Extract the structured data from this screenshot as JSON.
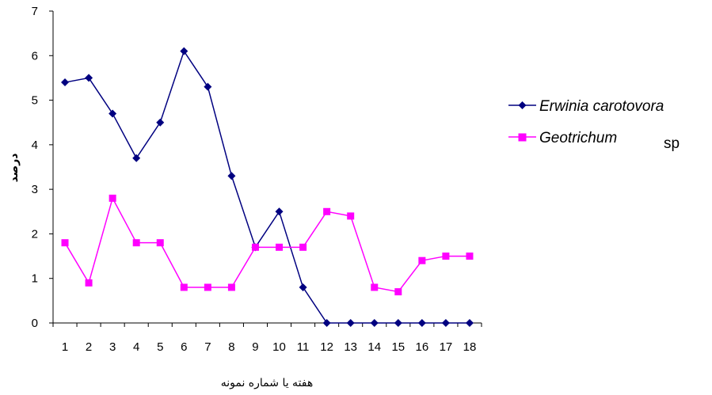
{
  "chart_data": {
    "type": "line",
    "categories": [
      "1",
      "2",
      "3",
      "4",
      "5",
      "6",
      "7",
      "8",
      "9",
      "10",
      "11",
      "12",
      "13",
      "14",
      "15",
      "16",
      "17",
      "18"
    ],
    "series": [
      {
        "name": "Erwinia carotovora",
        "color": "#000080",
        "marker": "diamond",
        "values": [
          5.4,
          5.5,
          4.7,
          3.7,
          4.5,
          6.1,
          5.3,
          3.3,
          1.7,
          2.5,
          0.8,
          0,
          0,
          0,
          0,
          0,
          0,
          0
        ]
      },
      {
        "name": "Geotrichum",
        "name_suffix": "sp",
        "color": "#ff00ff",
        "marker": "square",
        "values": [
          1.8,
          0.9,
          2.8,
          1.8,
          1.8,
          0.8,
          0.8,
          0.8,
          1.7,
          1.7,
          1.7,
          2.5,
          2.4,
          0.8,
          0.7,
          1.4,
          1.5,
          1.5
        ]
      }
    ],
    "xlabel": "هفته یا شماره نمونه",
    "ylabel": "درصد",
    "ylim": [
      0,
      7
    ],
    "yticks": [
      "0",
      "1",
      "2",
      "3",
      "4",
      "5",
      "6",
      "7"
    ],
    "grid": false,
    "legend": "right"
  }
}
